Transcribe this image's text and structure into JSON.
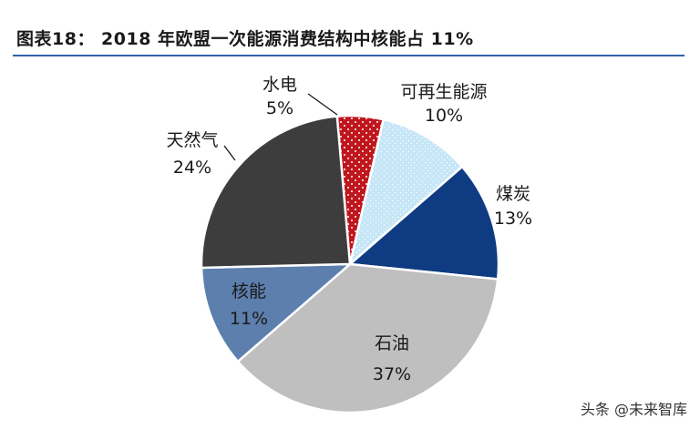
{
  "title": "图表18： 2018 年欧盟一次能源消费结构中核能占 11%",
  "watermark": "头条 @未来智库",
  "colors": {
    "rule": "#2e63a8",
    "hydro": "#c0161e",
    "renewable": "#c5e6f7",
    "coal": "#0f3b82",
    "oil": "#bfbfbf",
    "nuclear": "#5c7fad",
    "gas": "#3d3d3d"
  },
  "chart_data": {
    "type": "pie",
    "title": "图表18： 2018 年欧盟一次能源消费结构中核能占 11%",
    "unit": "%",
    "slices": [
      {
        "label": "水电",
        "value": 5,
        "value_label": "5%",
        "color": "#c0161e",
        "pattern": "dots"
      },
      {
        "label": "可再生能源",
        "value": 10,
        "value_label": "10%",
        "color": "#c5e6f7",
        "pattern": "speckle"
      },
      {
        "label": "煤炭",
        "value": 13,
        "value_label": "13%",
        "color": "#0f3b82",
        "pattern": "none"
      },
      {
        "label": "石油",
        "value": 37,
        "value_label": "37%",
        "color": "#bfbfbf",
        "pattern": "none"
      },
      {
        "label": "核能",
        "value": 11,
        "value_label": "11%",
        "color": "#5c7fad",
        "pattern": "none"
      },
      {
        "label": "天然气",
        "value": 24,
        "value_label": "24%",
        "color": "#3d3d3d",
        "pattern": "none"
      }
    ],
    "start_angle_deg": -5,
    "legend": "none"
  }
}
